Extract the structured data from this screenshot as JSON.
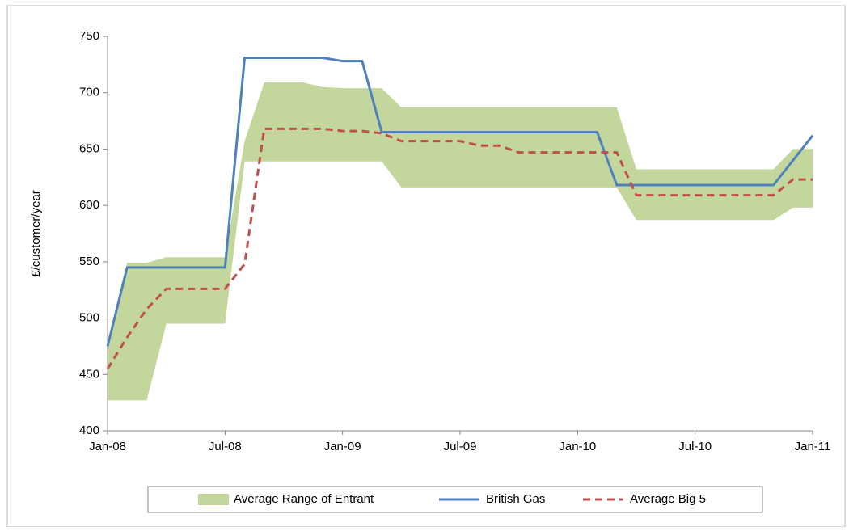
{
  "chart_data": {
    "type": "line",
    "y_label": "£/customer/year",
    "categories": [
      "Jan-08",
      null,
      null,
      null,
      null,
      null,
      "Jul-08",
      null,
      null,
      null,
      null,
      null,
      "Jan-09",
      null,
      null,
      null,
      null,
      null,
      "Jul-09",
      null,
      null,
      null,
      null,
      null,
      "Jan-10",
      null,
      null,
      null,
      null,
      null,
      "Jul-10",
      null,
      null,
      null,
      null,
      null,
      "Jan-11"
    ],
    "ylim": [
      400,
      750
    ],
    "yticks": [
      400,
      450,
      500,
      550,
      600,
      650,
      700,
      750
    ],
    "legend": "bottom",
    "series": [
      {
        "name": "Average Range of Entrant",
        "kind": "band",
        "color": "#c3d69b",
        "low": [
          427,
          427,
          427,
          495,
          495,
          495,
          495,
          639,
          639,
          639,
          639,
          639,
          639,
          639,
          639,
          616,
          616,
          616,
          616,
          616,
          616,
          616,
          616,
          616,
          616,
          616,
          616,
          587,
          587,
          587,
          587,
          587,
          587,
          587,
          587,
          598,
          598
        ],
        "high": [
          472,
          549,
          549,
          554,
          554,
          554,
          554,
          657,
          709,
          709,
          709,
          705,
          704,
          704,
          704,
          687,
          687,
          687,
          687,
          687,
          687,
          687,
          687,
          687,
          687,
          687,
          687,
          632,
          632,
          632,
          632,
          632,
          632,
          632,
          632,
          650,
          650
        ]
      },
      {
        "name": "British Gas",
        "kind": "solid",
        "color": "#4f81bd",
        "values": [
          475,
          545,
          545,
          545,
          545,
          545,
          545,
          731,
          731,
          731,
          731,
          731,
          728,
          728,
          665,
          665,
          665,
          665,
          665,
          665,
          665,
          665,
          665,
          665,
          665,
          665,
          618,
          618,
          618,
          618,
          618,
          618,
          618,
          618,
          618,
          640,
          662
        ]
      },
      {
        "name": "Average Big 5",
        "kind": "dashed",
        "color": "#c0504d",
        "values": [
          455,
          483,
          508,
          526,
          526,
          526,
          526,
          548,
          668,
          668,
          668,
          668,
          666,
          666,
          664,
          657,
          657,
          657,
          657,
          653,
          653,
          647,
          647,
          647,
          647,
          647,
          647,
          609,
          609,
          609,
          609,
          609,
          609,
          609,
          609,
          623,
          623
        ]
      }
    ]
  }
}
